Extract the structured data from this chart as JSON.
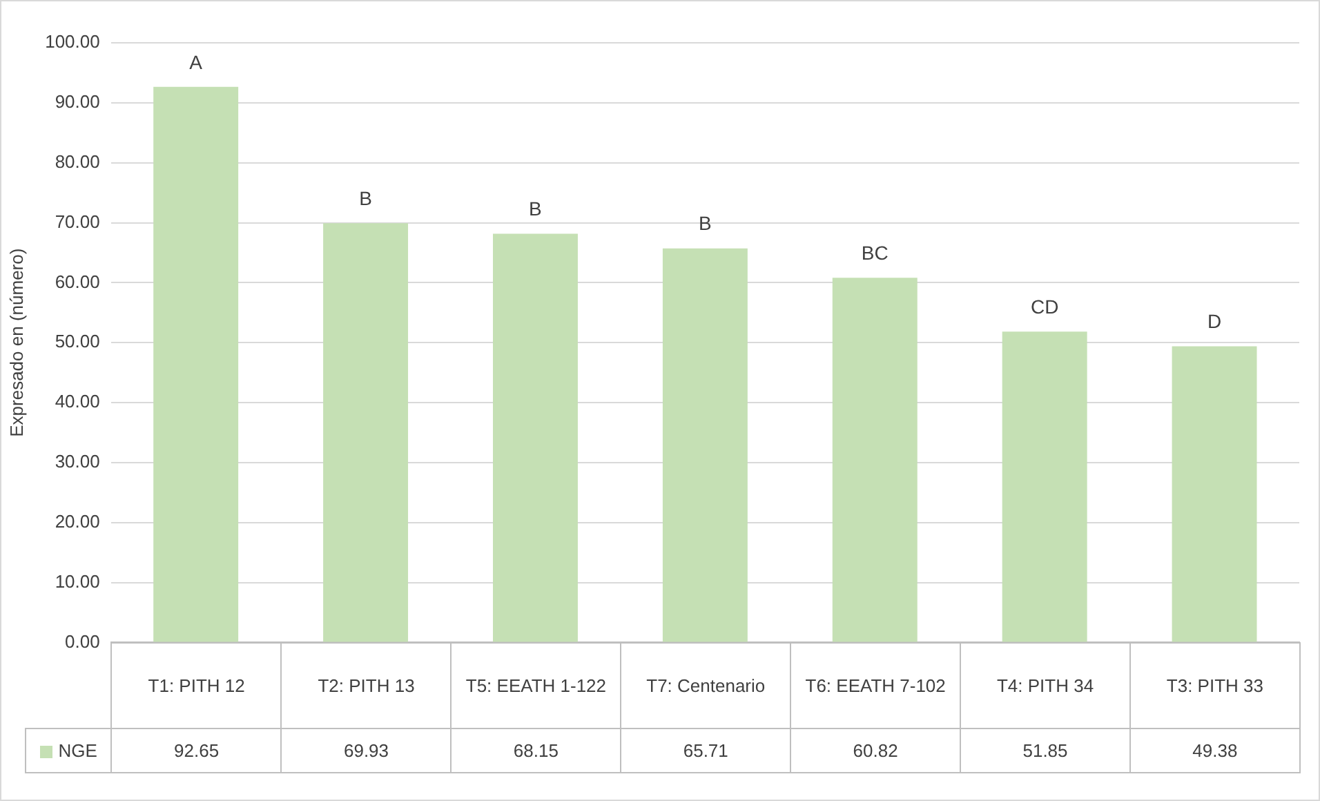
{
  "chart_data": {
    "type": "bar",
    "ylabel": "Expresado en (número)",
    "categories": [
      "T1: PITH 12",
      "T2: PITH 13",
      "T5: EEATH 1-122",
      "T7: Centenario",
      "T6: EEATH 7-102",
      "T4: PITH 34",
      "T3: PITH 33"
    ],
    "series": [
      {
        "name": "NGE",
        "color": "#c5e0b4",
        "values": [
          92.65,
          69.93,
          68.15,
          65.71,
          60.82,
          51.85,
          49.38
        ]
      }
    ],
    "ylim": [
      0,
      100
    ],
    "yticks": [
      {
        "value": 0,
        "label": "0.00"
      },
      {
        "value": 10,
        "label": "10.00"
      },
      {
        "value": 20,
        "label": "20.00"
      },
      {
        "value": 30,
        "label": "30.00"
      },
      {
        "value": 40,
        "label": "40.00"
      },
      {
        "value": 50,
        "label": "50.00"
      },
      {
        "value": 60,
        "label": "60.00"
      },
      {
        "value": 70,
        "label": "70.00"
      },
      {
        "value": 80,
        "label": "80.00"
      },
      {
        "value": 90,
        "label": "90.00"
      },
      {
        "value": 100,
        "label": "100.00"
      }
    ],
    "grid": "y",
    "legend": "bottom left",
    "data_labels": true,
    "annotations": [
      {
        "text": "A",
        "x": "T1: PITH 12",
        "y": 92.65
      },
      {
        "text": "B",
        "x": "T2: PITH 13",
        "y": 69.93
      },
      {
        "text": "B",
        "x": "T5: EEATH 1-122",
        "y": 68.15
      },
      {
        "text": "B",
        "x": "T7: Centenario",
        "y": 65.71
      },
      {
        "text": "BC",
        "x": "T6: EEATH 7-102",
        "y": 60.82
      },
      {
        "text": "CD",
        "x": "T4: PITH 34",
        "y": 51.85
      },
      {
        "text": "D",
        "x": "T3: PITH 33",
        "y": 49.38
      }
    ]
  }
}
